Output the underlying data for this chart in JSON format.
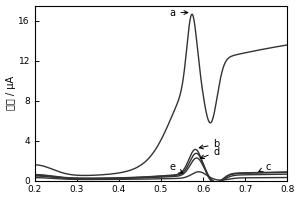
{
  "ylabel": "电流 / μA",
  "xlim": [
    0.2,
    0.8
  ],
  "ylim": [
    0,
    17.5
  ],
  "yticks": [
    0,
    4,
    8,
    12,
    16
  ],
  "xticks": [
    0.2,
    0.3,
    0.4,
    0.5,
    0.6,
    0.7,
    0.8
  ],
  "background_color": "#ffffff",
  "line_color": "#333333"
}
